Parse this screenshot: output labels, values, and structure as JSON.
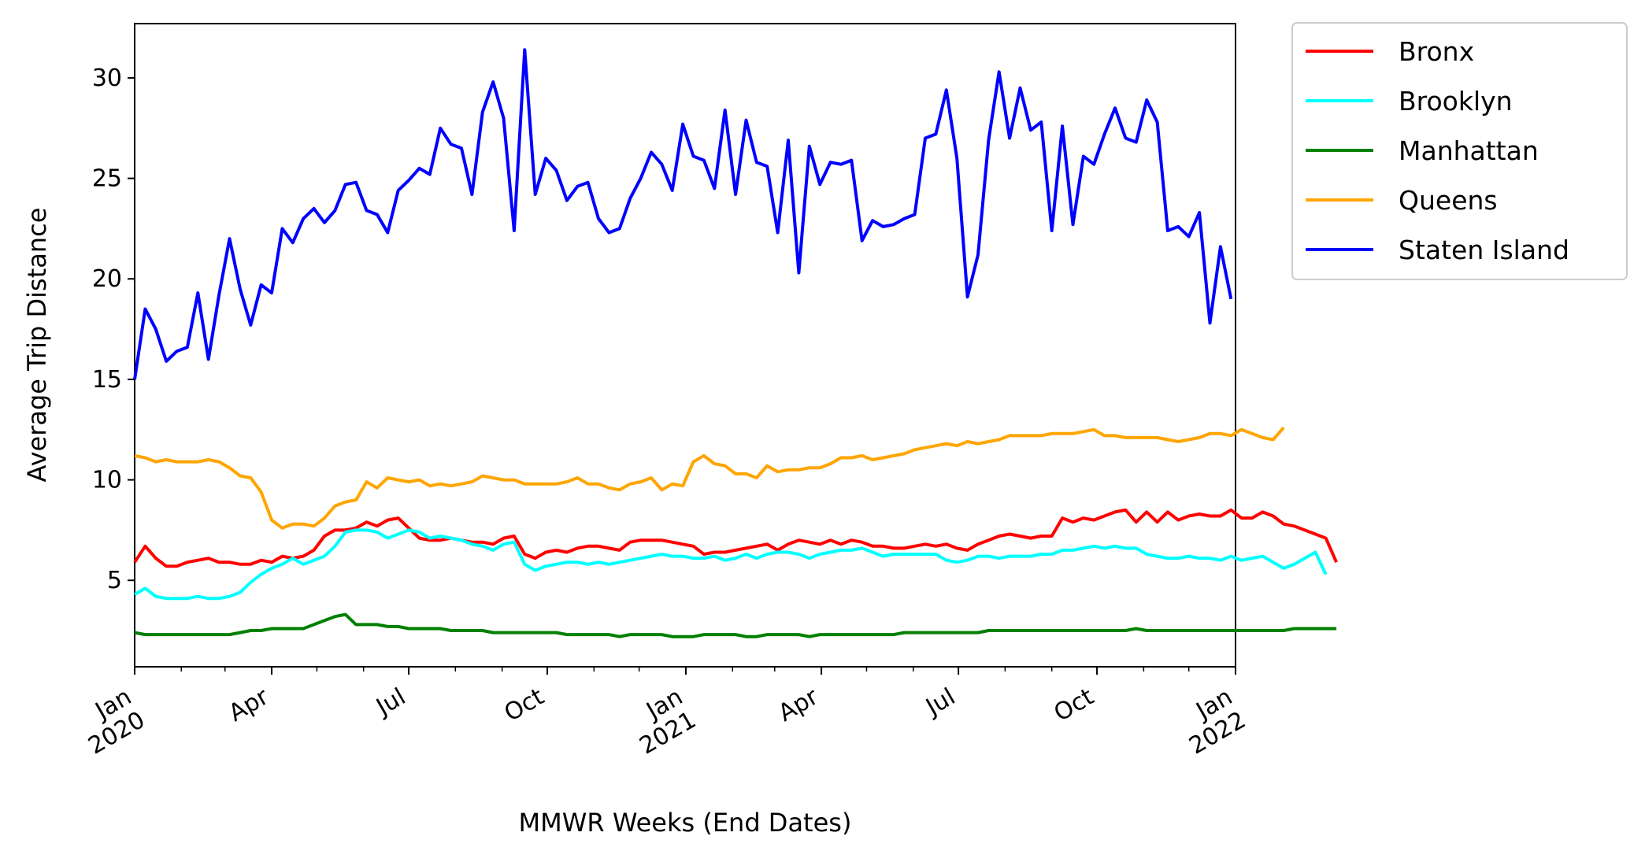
{
  "chart_data": {
    "type": "line",
    "title": "",
    "xlabel": "MMWR Weeks (End Dates)",
    "ylabel": "Average Trip Distance",
    "xlim": [
      "2020-01-01",
      "2022-01-01"
    ],
    "ylim": [
      0.7,
      32.7
    ],
    "grid": false,
    "legend_position": "outside-right-top",
    "x_ticks": [
      {
        "date": "2020-01-01",
        "lines": [
          "Jan",
          "2020"
        ]
      },
      {
        "date": "2020-04-01",
        "lines": [
          "Apr"
        ]
      },
      {
        "date": "2020-07-01",
        "lines": [
          "Jul"
        ]
      },
      {
        "date": "2020-10-01",
        "lines": [
          "Oct"
        ]
      },
      {
        "date": "2021-01-01",
        "lines": [
          "Jan",
          "2021"
        ]
      },
      {
        "date": "2021-04-01",
        "lines": [
          "Apr"
        ]
      },
      {
        "date": "2021-07-01",
        "lines": [
          "Jul"
        ]
      },
      {
        "date": "2021-10-01",
        "lines": [
          "Oct"
        ]
      },
      {
        "date": "2022-01-01",
        "lines": [
          "Jan",
          "2022"
        ]
      }
    ],
    "x_minor_ticks": [
      "2020-02-01",
      "2020-03-01",
      "2020-05-01",
      "2020-06-01",
      "2020-08-01",
      "2020-09-01",
      "2020-11-01",
      "2020-12-01",
      "2021-02-01",
      "2021-03-01",
      "2021-05-01",
      "2021-06-01",
      "2021-08-01",
      "2021-09-01",
      "2021-11-01",
      "2021-12-01"
    ],
    "y_ticks": [
      5,
      10,
      15,
      20,
      25,
      30
    ],
    "x_start": "2020-01-01",
    "x_step_days": 7,
    "series": [
      {
        "name": "Bronx",
        "color": "#ff0000",
        "values": [
          5.9,
          6.7,
          6.1,
          5.7,
          5.7,
          5.9,
          6.0,
          6.1,
          5.9,
          5.9,
          5.8,
          5.8,
          6.0,
          5.9,
          6.2,
          6.1,
          6.2,
          6.5,
          7.2,
          7.5,
          7.5,
          7.6,
          7.9,
          7.7,
          8.0,
          8.1,
          7.6,
          7.1,
          7.0,
          7.0,
          7.1,
          7.0,
          6.9,
          6.9,
          6.8,
          7.1,
          7.2,
          6.3,
          6.1,
          6.4,
          6.5,
          6.4,
          6.6,
          6.7,
          6.7,
          6.6,
          6.5,
          6.9,
          7.0,
          7.0,
          7.0,
          6.9,
          6.8,
          6.7,
          6.3,
          6.4,
          6.4,
          6.5,
          6.6,
          6.7,
          6.8,
          6.5,
          6.8,
          7.0,
          6.9,
          6.8,
          7.0,
          6.8,
          7.0,
          6.9,
          6.7,
          6.7,
          6.6,
          6.6,
          6.7,
          6.8,
          6.7,
          6.8,
          6.6,
          6.5,
          6.8,
          7.0,
          7.2,
          7.3,
          7.2,
          7.1,
          7.2,
          7.2,
          8.1,
          7.9,
          8.1,
          8.0,
          8.2,
          8.4,
          8.5,
          7.9,
          8.4,
          7.9,
          8.4,
          8.0,
          8.2,
          8.3,
          8.2,
          8.2,
          8.5,
          8.1,
          8.1,
          8.4,
          8.2,
          7.8,
          7.7,
          7.5,
          7.3,
          7.1,
          5.9
        ]
      },
      {
        "name": "Brooklyn",
        "color": "#00ffff",
        "values": [
          4.3,
          4.6,
          4.2,
          4.1,
          4.1,
          4.1,
          4.2,
          4.1,
          4.1,
          4.2,
          4.4,
          4.9,
          5.3,
          5.6,
          5.8,
          6.1,
          5.8,
          6.0,
          6.2,
          6.7,
          7.4,
          7.5,
          7.5,
          7.4,
          7.1,
          7.3,
          7.5,
          7.4,
          7.1,
          7.2,
          7.1,
          7.0,
          6.8,
          6.7,
          6.5,
          6.8,
          6.9,
          5.8,
          5.5,
          5.7,
          5.8,
          5.9,
          5.9,
          5.8,
          5.9,
          5.8,
          5.9,
          6.0,
          6.1,
          6.2,
          6.3,
          6.2,
          6.2,
          6.1,
          6.1,
          6.2,
          6.0,
          6.1,
          6.3,
          6.1,
          6.3,
          6.4,
          6.4,
          6.3,
          6.1,
          6.3,
          6.4,
          6.5,
          6.5,
          6.6,
          6.4,
          6.2,
          6.3,
          6.3,
          6.3,
          6.3,
          6.3,
          6.0,
          5.9,
          6.0,
          6.2,
          6.2,
          6.1,
          6.2,
          6.2,
          6.2,
          6.3,
          6.3,
          6.5,
          6.5,
          6.6,
          6.7,
          6.6,
          6.7,
          6.6,
          6.6,
          6.3,
          6.2,
          6.1,
          6.1,
          6.2,
          6.1,
          6.1,
          6.0,
          6.2,
          6.0,
          6.1,
          6.2,
          5.9,
          5.6,
          5.8,
          6.1,
          6.4,
          5.3
        ]
      },
      {
        "name": "Manhattan",
        "color": "#008000",
        "values": [
          2.4,
          2.3,
          2.3,
          2.3,
          2.3,
          2.3,
          2.3,
          2.3,
          2.3,
          2.3,
          2.4,
          2.5,
          2.5,
          2.6,
          2.6,
          2.6,
          2.6,
          2.8,
          3.0,
          3.2,
          3.3,
          2.8,
          2.8,
          2.8,
          2.7,
          2.7,
          2.6,
          2.6,
          2.6,
          2.6,
          2.5,
          2.5,
          2.5,
          2.5,
          2.4,
          2.4,
          2.4,
          2.4,
          2.4,
          2.4,
          2.4,
          2.3,
          2.3,
          2.3,
          2.3,
          2.3,
          2.2,
          2.3,
          2.3,
          2.3,
          2.3,
          2.2,
          2.2,
          2.2,
          2.3,
          2.3,
          2.3,
          2.3,
          2.2,
          2.2,
          2.3,
          2.3,
          2.3,
          2.3,
          2.2,
          2.3,
          2.3,
          2.3,
          2.3,
          2.3,
          2.3,
          2.3,
          2.3,
          2.4,
          2.4,
          2.4,
          2.4,
          2.4,
          2.4,
          2.4,
          2.4,
          2.5,
          2.5,
          2.5,
          2.5,
          2.5,
          2.5,
          2.5,
          2.5,
          2.5,
          2.5,
          2.5,
          2.5,
          2.5,
          2.5,
          2.6,
          2.5,
          2.5,
          2.5,
          2.5,
          2.5,
          2.5,
          2.5,
          2.5,
          2.5,
          2.5,
          2.5,
          2.5,
          2.5,
          2.5,
          2.6,
          2.6,
          2.6,
          2.6,
          2.6
        ]
      },
      {
        "name": "Queens",
        "color": "#ffa500",
        "values": [
          11.2,
          11.1,
          10.9,
          11.0,
          10.9,
          10.9,
          10.9,
          11.0,
          10.9,
          10.6,
          10.2,
          10.1,
          9.4,
          8.0,
          7.6,
          7.8,
          7.8,
          7.7,
          8.1,
          8.7,
          8.9,
          9.0,
          9.9,
          9.6,
          10.1,
          10.0,
          9.9,
          10.0,
          9.7,
          9.8,
          9.7,
          9.8,
          9.9,
          10.2,
          10.1,
          10.0,
          10.0,
          9.8,
          9.8,
          9.8,
          9.8,
          9.9,
          10.1,
          9.8,
          9.8,
          9.6,
          9.5,
          9.8,
          9.9,
          10.1,
          9.5,
          9.8,
          9.7,
          10.9,
          11.2,
          10.8,
          10.7,
          10.3,
          10.3,
          10.1,
          10.7,
          10.4,
          10.5,
          10.5,
          10.6,
          10.6,
          10.8,
          11.1,
          11.1,
          11.2,
          11.0,
          11.1,
          11.2,
          11.3,
          11.5,
          11.6,
          11.7,
          11.8,
          11.7,
          11.9,
          11.8,
          11.9,
          12.0,
          12.2,
          12.2,
          12.2,
          12.2,
          12.3,
          12.3,
          12.3,
          12.4,
          12.5,
          12.2,
          12.2,
          12.1,
          12.1,
          12.1,
          12.1,
          12.0,
          11.9,
          12.0,
          12.1,
          12.3,
          12.3,
          12.2,
          12.5,
          12.3,
          12.1,
          12.0,
          12.6
        ]
      },
      {
        "name": "Staten Island",
        "color": "#0000ff",
        "values": [
          15.0,
          18.5,
          17.5,
          15.9,
          16.4,
          16.6,
          19.3,
          16.0,
          19.2,
          22.0,
          19.5,
          17.7,
          19.7,
          19.3,
          22.5,
          21.8,
          23.0,
          23.5,
          22.8,
          23.4,
          24.7,
          24.8,
          23.4,
          23.2,
          22.3,
          24.4,
          24.9,
          25.5,
          25.2,
          27.5,
          26.7,
          26.5,
          24.2,
          28.3,
          29.8,
          28.0,
          22.4,
          31.4,
          24.2,
          26.0,
          25.4,
          23.9,
          24.6,
          24.8,
          23.0,
          22.3,
          22.5,
          24.0,
          25.0,
          26.3,
          25.7,
          24.4,
          27.7,
          26.1,
          25.9,
          24.5,
          28.4,
          24.2,
          27.9,
          25.8,
          25.6,
          22.3,
          26.9,
          20.3,
          26.6,
          24.7,
          25.8,
          25.7,
          25.9,
          21.9,
          22.9,
          22.6,
          22.7,
          23.0,
          23.2,
          27.0,
          27.2,
          29.4,
          26.0,
          19.1,
          21.2,
          26.9,
          30.3,
          27.0,
          29.5,
          27.4,
          27.8,
          22.4,
          27.6,
          22.7,
          26.1,
          25.7,
          27.2,
          28.5,
          27.0,
          26.8,
          28.9,
          27.8,
          22.4,
          22.6,
          22.1,
          23.3,
          17.8,
          21.6,
          19.0
        ]
      }
    ]
  }
}
